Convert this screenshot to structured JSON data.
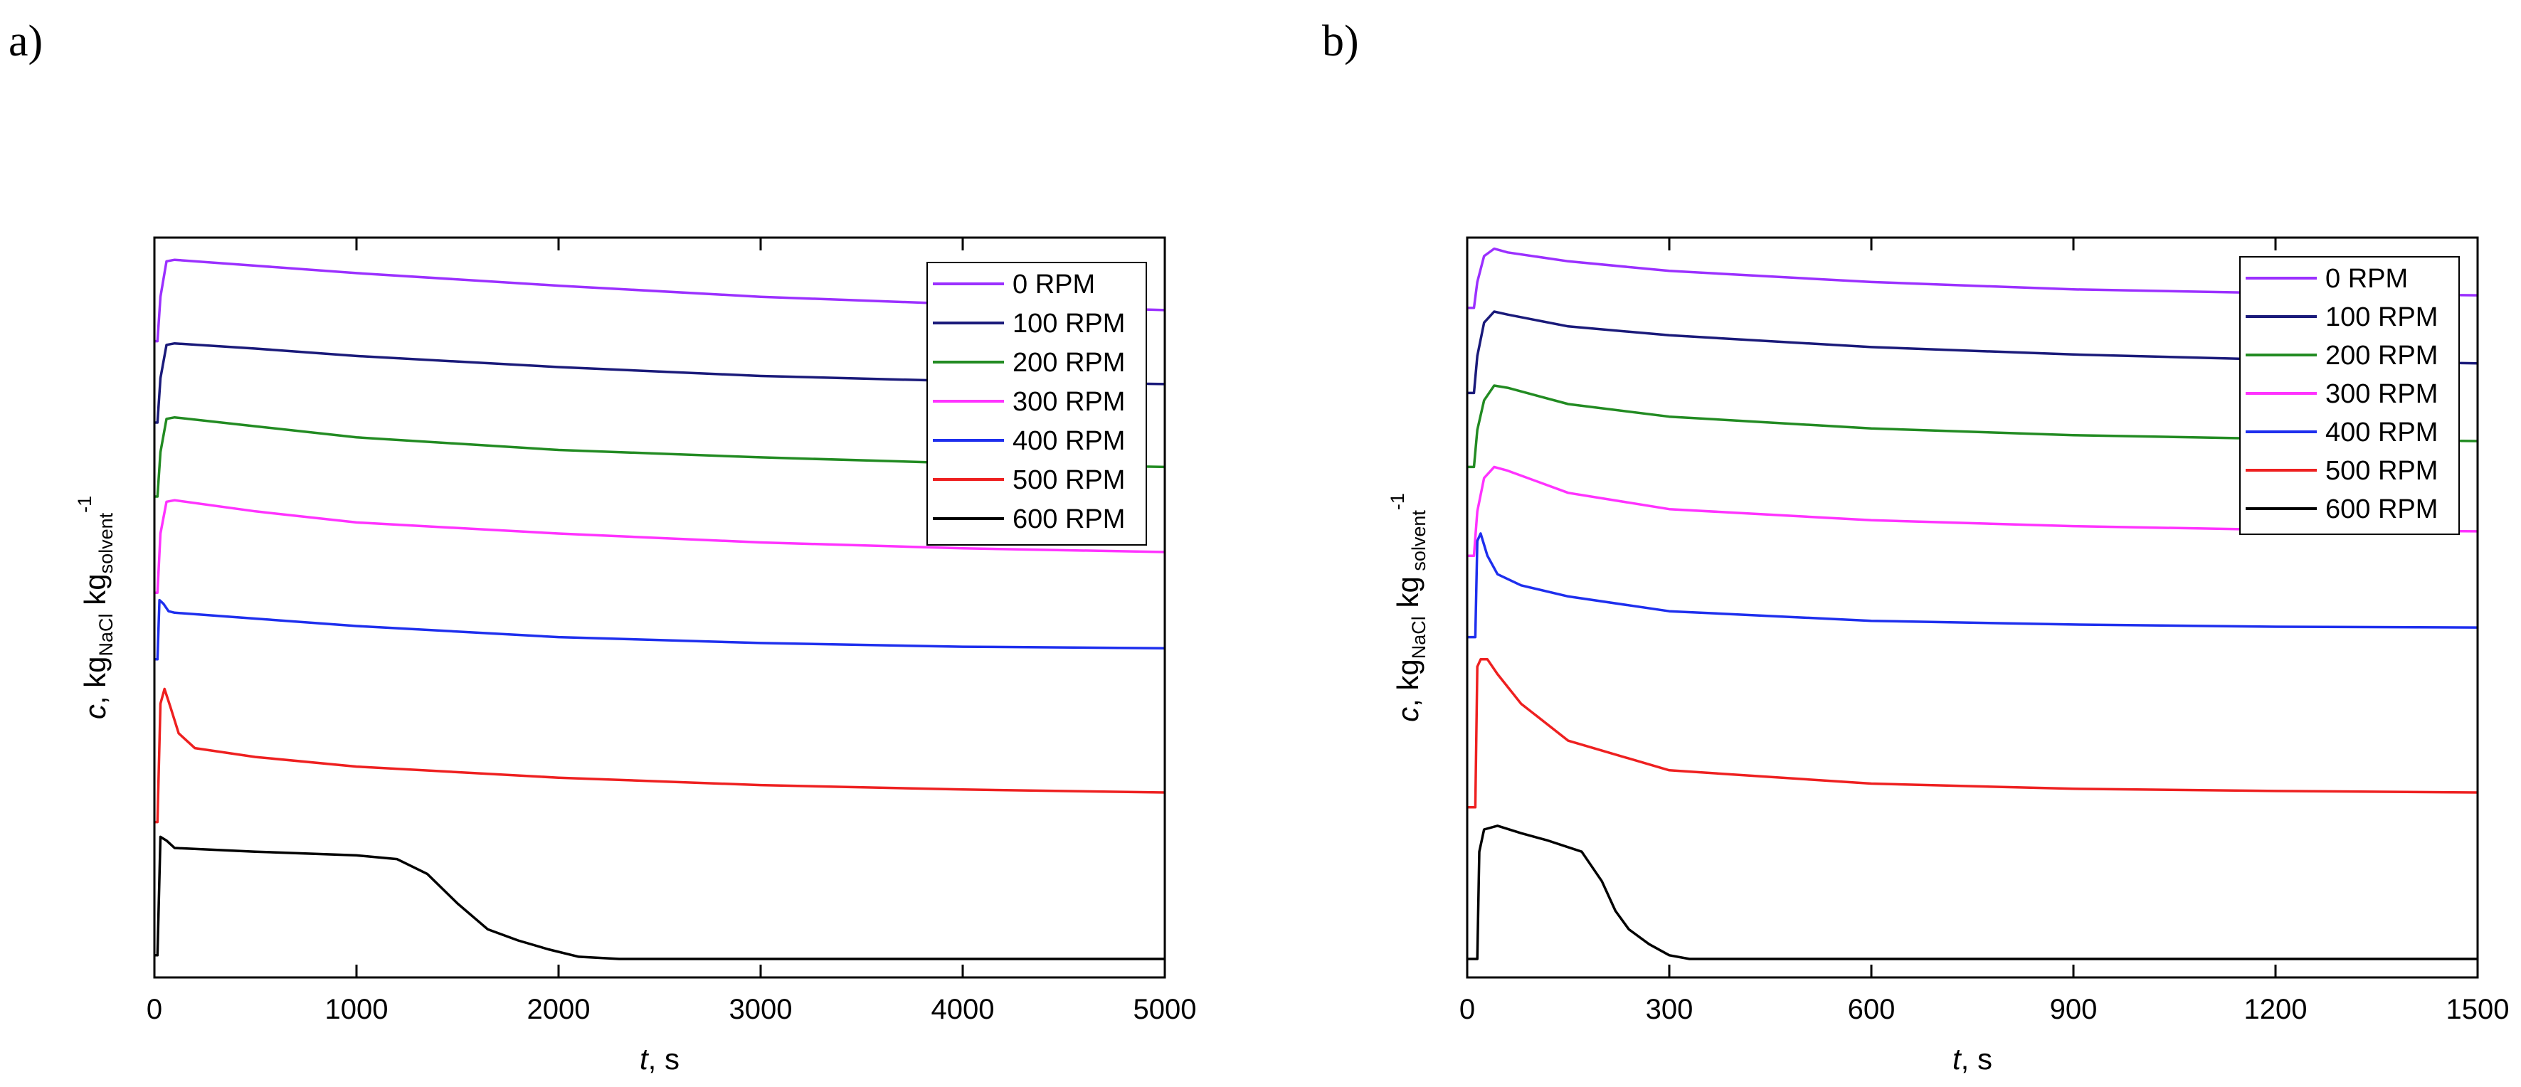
{
  "chart_data": [
    {
      "type": "line",
      "panel_label": "a)",
      "xlabel": "t, s",
      "ylabel": "c, kg_NaCl kg_solvent^-1",
      "xlim": [
        0,
        5000
      ],
      "x_ticks": [
        0,
        1000,
        2000,
        3000,
        4000,
        5000
      ],
      "x_tick_labels": [
        "0",
        "1000",
        "2000",
        "3000",
        "4000",
        "5000"
      ],
      "y_ticks_shown": false,
      "legend_position": "top-right",
      "series": [
        {
          "name": "0 RPM",
          "color": "#9B30FF",
          "x": [
            0,
            15,
            30,
            60,
            100,
            500,
            1000,
            2000,
            3000,
            4000,
            5000
          ],
          "y": [
            0.86,
            0.86,
            0.92,
            0.968,
            0.97,
            0.962,
            0.952,
            0.935,
            0.92,
            0.91,
            0.902
          ]
        },
        {
          "name": "100 RPM",
          "color": "#1A1A7A",
          "x": [
            0,
            15,
            30,
            60,
            100,
            500,
            1000,
            2000,
            3000,
            4000,
            5000
          ],
          "y": [
            0.75,
            0.75,
            0.81,
            0.855,
            0.857,
            0.85,
            0.84,
            0.825,
            0.813,
            0.806,
            0.802
          ]
        },
        {
          "name": "200 RPM",
          "color": "#228B22",
          "x": [
            0,
            15,
            30,
            60,
            100,
            500,
            1000,
            2000,
            3000,
            4000,
            5000
          ],
          "y": [
            0.65,
            0.65,
            0.71,
            0.755,
            0.757,
            0.745,
            0.73,
            0.713,
            0.703,
            0.695,
            0.69
          ]
        },
        {
          "name": "300 RPM",
          "color": "#FF33FF",
          "x": [
            0,
            15,
            30,
            60,
            100,
            500,
            1000,
            2000,
            3000,
            4000,
            5000
          ],
          "y": [
            0.52,
            0.52,
            0.6,
            0.643,
            0.645,
            0.63,
            0.615,
            0.6,
            0.588,
            0.58,
            0.575
          ]
        },
        {
          "name": "400 RPM",
          "color": "#1E2FEE",
          "x": [
            0,
            15,
            25,
            45,
            70,
            100,
            500,
            1000,
            2000,
            3000,
            4000,
            5000
          ],
          "y": [
            0.43,
            0.43,
            0.51,
            0.505,
            0.495,
            0.493,
            0.485,
            0.475,
            0.46,
            0.452,
            0.447,
            0.445
          ]
        },
        {
          "name": "500 RPM",
          "color": "#EE2020",
          "x": [
            0,
            15,
            30,
            50,
            80,
            120,
            200,
            500,
            1000,
            2000,
            3000,
            4000,
            5000
          ],
          "y": [
            0.21,
            0.21,
            0.37,
            0.39,
            0.365,
            0.33,
            0.31,
            0.298,
            0.285,
            0.27,
            0.26,
            0.254,
            0.25
          ]
        },
        {
          "name": "600 RPM",
          "color": "#000000",
          "x": [
            0,
            15,
            30,
            60,
            100,
            500,
            1000,
            1200,
            1350,
            1500,
            1650,
            1800,
            1950,
            2100,
            2300,
            3000,
            4000,
            5000
          ],
          "y": [
            0.03,
            0.03,
            0.19,
            0.185,
            0.175,
            0.17,
            0.165,
            0.16,
            0.14,
            0.1,
            0.065,
            0.05,
            0.038,
            0.028,
            0.025,
            0.025,
            0.025,
            0.025
          ]
        }
      ]
    },
    {
      "type": "line",
      "panel_label": "b)",
      "xlabel": "t, s",
      "ylabel": "c, kg_NaCl kg_solvent^-1",
      "xlim": [
        0,
        1500
      ],
      "x_ticks": [
        0,
        300,
        600,
        900,
        1200,
        1500
      ],
      "x_tick_labels": [
        "0",
        "300",
        "600",
        "900",
        "1200",
        "1500"
      ],
      "y_ticks_shown": false,
      "legend_position": "top-right",
      "series": [
        {
          "name": "0 RPM",
          "color": "#9B30FF",
          "x": [
            0,
            10,
            15,
            25,
            40,
            60,
            150,
            300,
            600,
            900,
            1200,
            1500
          ],
          "y": [
            0.905,
            0.905,
            0.94,
            0.975,
            0.985,
            0.98,
            0.968,
            0.955,
            0.94,
            0.93,
            0.925,
            0.922
          ]
        },
        {
          "name": "100 RPM",
          "color": "#1A1A7A",
          "x": [
            0,
            10,
            15,
            25,
            40,
            60,
            150,
            300,
            600,
            900,
            1200,
            1500
          ],
          "y": [
            0.79,
            0.79,
            0.84,
            0.885,
            0.9,
            0.896,
            0.88,
            0.868,
            0.852,
            0.842,
            0.835,
            0.83
          ]
        },
        {
          "name": "200 RPM",
          "color": "#228B22",
          "x": [
            0,
            10,
            15,
            25,
            40,
            60,
            150,
            300,
            600,
            900,
            1200,
            1500
          ],
          "y": [
            0.69,
            0.69,
            0.74,
            0.78,
            0.8,
            0.797,
            0.775,
            0.758,
            0.742,
            0.733,
            0.728,
            0.725
          ]
        },
        {
          "name": "300 RPM",
          "color": "#FF33FF",
          "x": [
            0,
            10,
            15,
            25,
            40,
            60,
            150,
            300,
            600,
            900,
            1200,
            1500
          ],
          "y": [
            0.57,
            0.57,
            0.63,
            0.675,
            0.69,
            0.685,
            0.655,
            0.633,
            0.618,
            0.61,
            0.605,
            0.603
          ]
        },
        {
          "name": "400 RPM",
          "color": "#1E2FEE",
          "x": [
            0,
            12,
            15,
            20,
            30,
            45,
            80,
            150,
            300,
            600,
            900,
            1200,
            1500
          ],
          "y": [
            0.46,
            0.46,
            0.59,
            0.6,
            0.57,
            0.545,
            0.53,
            0.515,
            0.495,
            0.482,
            0.477,
            0.474,
            0.473
          ]
        },
        {
          "name": "500 RPM",
          "color": "#EE2020",
          "x": [
            0,
            12,
            15,
            20,
            30,
            45,
            80,
            150,
            300,
            600,
            900,
            1200,
            1500
          ],
          "y": [
            0.23,
            0.23,
            0.42,
            0.43,
            0.43,
            0.41,
            0.37,
            0.32,
            0.28,
            0.262,
            0.255,
            0.252,
            0.25
          ]
        },
        {
          "name": "600 RPM",
          "color": "#000000",
          "x": [
            0,
            15,
            18,
            25,
            45,
            80,
            120,
            170,
            200,
            220,
            240,
            270,
            300,
            330,
            500,
            900,
            1200,
            1500
          ],
          "y": [
            0.025,
            0.025,
            0.17,
            0.2,
            0.205,
            0.195,
            0.185,
            0.17,
            0.13,
            0.09,
            0.065,
            0.045,
            0.03,
            0.025,
            0.025,
            0.025,
            0.025,
            0.025
          ]
        }
      ]
    }
  ]
}
